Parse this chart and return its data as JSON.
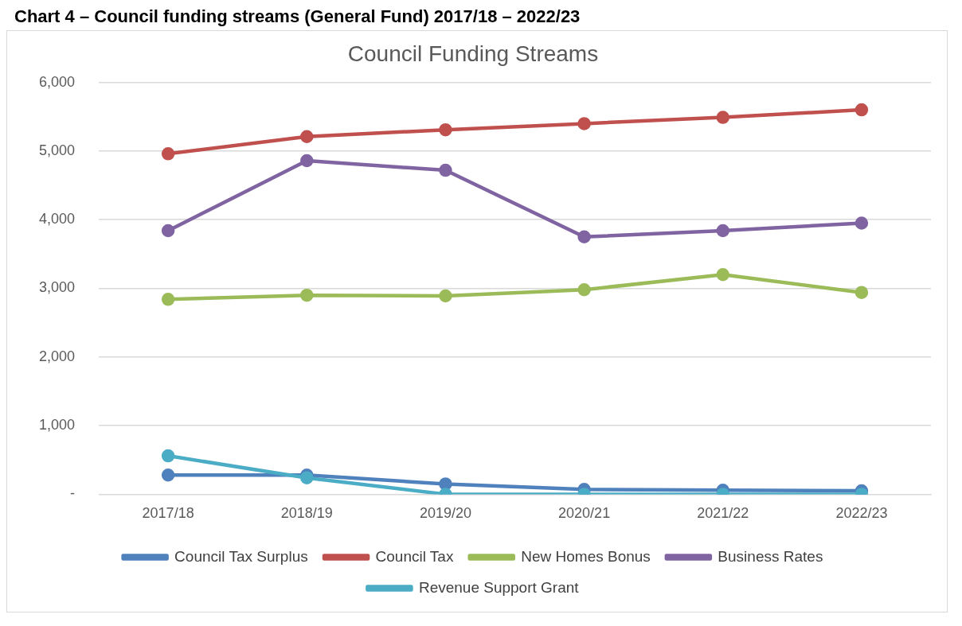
{
  "chart_data": {
    "type": "line",
    "title": "Council Funding Streams",
    "annotations": [
      "Chart 4 – Council funding streams (General Fund) 2017/18 – 2022/23"
    ],
    "categories": [
      "2017/18",
      "2018/19",
      "2019/20",
      "2020/21",
      "2021/22",
      "2022/23"
    ],
    "series": [
      {
        "name": "Council Tax Surplus",
        "color": "#4f81bd",
        "values": [
          280,
          280,
          150,
          70,
          60,
          50
        ]
      },
      {
        "name": "Council Tax",
        "color": "#c0504d",
        "values": [
          4960,
          5210,
          5310,
          5400,
          5490,
          5600
        ]
      },
      {
        "name": "New Homes Bonus",
        "color": "#9bbb59",
        "values": [
          2840,
          2900,
          2890,
          2980,
          3200,
          2940
        ]
      },
      {
        "name": "Business Rates",
        "color": "#8064a2",
        "values": [
          3840,
          4860,
          4720,
          3750,
          3840,
          3950
        ]
      },
      {
        "name": "Revenue Support Grant",
        "color": "#4bacc6",
        "values": [
          560,
          240,
          0,
          0,
          0,
          0
        ]
      }
    ],
    "ylim": [
      0,
      6000
    ],
    "yticks": [
      {
        "value": 0,
        "label": "-"
      },
      {
        "value": 1000,
        "label": "1,000"
      },
      {
        "value": 2000,
        "label": "2,000"
      },
      {
        "value": 3000,
        "label": "3,000"
      },
      {
        "value": 4000,
        "label": "4,000"
      },
      {
        "value": 5000,
        "label": "5,000"
      },
      {
        "value": 6000,
        "label": "6,000"
      }
    ],
    "grid": "y",
    "legend": "bottom",
    "marker": "circle",
    "line_style": "solid"
  }
}
